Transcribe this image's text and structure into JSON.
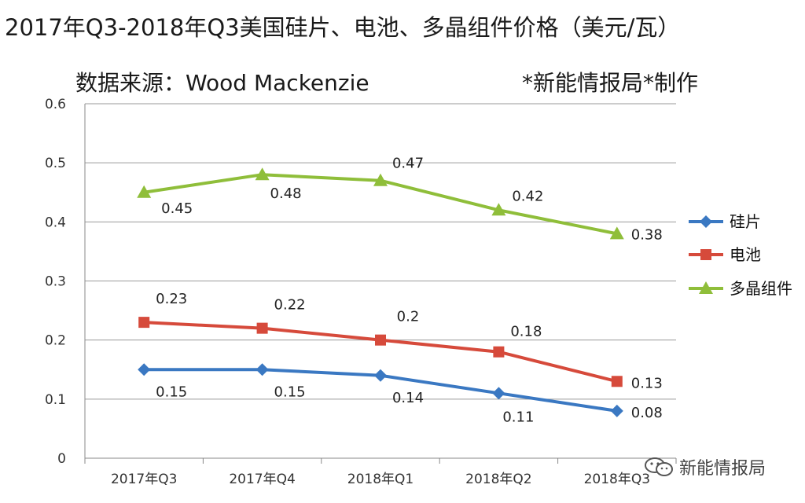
{
  "title": "2017年Q3-2018年Q3美国硅片、电池、多晶组件价格（美元/瓦）",
  "subtitle": "数据来源：Wood Mackenzie",
  "credit": "*新能情报局*制作",
  "watermark": "新能情报局",
  "chart_data": {
    "type": "line",
    "title": "2017年Q3-2018年Q3美国硅片、电池、多晶组件价格（美元/瓦）",
    "categories": [
      "2017年Q3",
      "2017年Q4",
      "2018年Q1",
      "2018年Q2",
      "2018年Q3"
    ],
    "ylim": [
      0,
      0.6
    ],
    "yticks": [
      0,
      0.1,
      0.2,
      0.3,
      0.4,
      0.5,
      0.6
    ],
    "ytick_labels": [
      "0",
      "0.1",
      "0.2",
      "0.3",
      "0.4",
      "0.5",
      "0.6"
    ],
    "grid": true,
    "legend": "right",
    "series": [
      {
        "name": "硅片",
        "color": "#3a78c2",
        "marker": "diamond",
        "values": [
          0.15,
          0.15,
          0.14,
          0.11,
          0.08
        ],
        "labels": [
          "0.15",
          "0.15",
          "0.14",
          "0.11",
          "0.08"
        ]
      },
      {
        "name": "电池",
        "color": "#d64a3b",
        "marker": "square",
        "values": [
          0.23,
          0.22,
          0.2,
          0.18,
          0.13
        ],
        "labels": [
          "0.23",
          "0.22",
          "0.2",
          "0.18",
          "0.13"
        ]
      },
      {
        "name": "多晶组件",
        "color": "#8fbe3a",
        "marker": "triangle",
        "values": [
          0.45,
          0.48,
          0.47,
          0.42,
          0.38
        ],
        "labels": [
          "0.45",
          "0.48",
          "0.47",
          "0.42",
          "0.38"
        ]
      }
    ]
  }
}
